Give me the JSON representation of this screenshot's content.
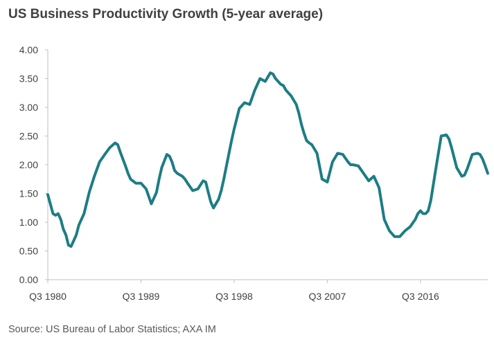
{
  "title": "US Business Productivity Growth (5-year average)",
  "source": "Source: US Bureau of Labor Statistics; AXA IM",
  "colors": {
    "series": "#1d7d84",
    "axis": "#bfbfbf",
    "text": "#404040"
  },
  "chart_data": {
    "type": "line",
    "title": "US Business Productivity Growth (5-year average)",
    "xlabel": "",
    "ylabel": "",
    "ylim": [
      0,
      4
    ],
    "yticks": [
      "0.00",
      "0.50",
      "1.00",
      "1.50",
      "2.00",
      "2.50",
      "3.00",
      "3.50",
      "4.00"
    ],
    "x_unit": "quarters since Q3 1980",
    "xlim": [
      0,
      170
    ],
    "xticks": [
      {
        "label": "Q3 1980",
        "x": 0
      },
      {
        "label": "Q3 1989",
        "x": 36
      },
      {
        "label": "Q3 1998",
        "x": 72
      },
      {
        "label": "Q3 2007",
        "x": 108
      },
      {
        "label": "Q3 2016",
        "x": 144
      }
    ],
    "legend": "none",
    "grid": false,
    "series": [
      {
        "name": "US Business Productivity Growth (5-year average)",
        "x": [
          0,
          2,
          3,
          4,
          5,
          6,
          7,
          8,
          9,
          10,
          11,
          12,
          14,
          16,
          18,
          20,
          22,
          24,
          26,
          27,
          28,
          30,
          31,
          32,
          34,
          36,
          38,
          40,
          42,
          43,
          44,
          46,
          47,
          48,
          49,
          50,
          52,
          53,
          54,
          56,
          58,
          60,
          61,
          62,
          63,
          64,
          66,
          67,
          68,
          70,
          71,
          72,
          74,
          76,
          78,
          80,
          82,
          84,
          86,
          87,
          88,
          90,
          91,
          92,
          93,
          94,
          96,
          97,
          98,
          99,
          100,
          101,
          102,
          104,
          106,
          108,
          110,
          112,
          114,
          116,
          117,
          118,
          120,
          122,
          124,
          126,
          128,
          130,
          132,
          133,
          134,
          136,
          138,
          140,
          142,
          143,
          144,
          145,
          146,
          147,
          148,
          150,
          152,
          154,
          155,
          156,
          158,
          160,
          161,
          162,
          163,
          164,
          166,
          167,
          168,
          169,
          170
        ],
        "values": [
          1.48,
          1.15,
          1.12,
          1.15,
          1.05,
          0.88,
          0.78,
          0.6,
          0.58,
          0.68,
          0.78,
          0.95,
          1.15,
          1.52,
          1.8,
          2.05,
          2.18,
          2.3,
          2.38,
          2.35,
          2.22,
          1.98,
          1.85,
          1.75,
          1.68,
          1.68,
          1.58,
          1.32,
          1.52,
          1.75,
          1.95,
          2.18,
          2.15,
          2.05,
          1.9,
          1.85,
          1.8,
          1.75,
          1.68,
          1.55,
          1.58,
          1.72,
          1.7,
          1.52,
          1.35,
          1.25,
          1.4,
          1.55,
          1.75,
          2.2,
          2.42,
          2.62,
          2.98,
          3.08,
          3.05,
          3.3,
          3.5,
          3.45,
          3.6,
          3.58,
          3.5,
          3.4,
          3.38,
          3.3,
          3.25,
          3.2,
          3.05,
          2.9,
          2.7,
          2.55,
          2.42,
          2.38,
          2.35,
          2.2,
          1.75,
          1.7,
          2.05,
          2.2,
          2.18,
          2.05,
          2.0,
          2.0,
          1.98,
          1.85,
          1.72,
          1.8,
          1.6,
          1.05,
          0.85,
          0.8,
          0.75,
          0.75,
          0.85,
          0.92,
          1.05,
          1.15,
          1.2,
          1.15,
          1.15,
          1.2,
          1.38,
          1.95,
          2.5,
          2.52,
          2.45,
          2.3,
          1.95,
          1.8,
          1.82,
          1.92,
          2.05,
          2.18,
          2.2,
          2.18,
          2.1,
          1.98,
          1.85
        ]
      }
    ]
  }
}
